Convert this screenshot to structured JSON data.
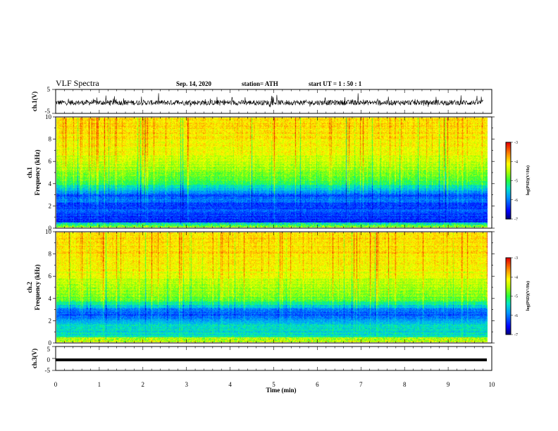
{
  "header": {
    "title": "VLF Spectra",
    "date": "Sep. 14, 2020",
    "station": "station= ATH",
    "start": "start  UT =   1 : 50 : 1"
  },
  "colors": {
    "spectrogram_colormap": [
      "#000080",
      "#0000ff",
      "#00a0ff",
      "#00ffa0",
      "#60ff00",
      "#ffff00",
      "#ff8000",
      "#ff0000",
      "#ffffff"
    ],
    "waveform": "#000000"
  },
  "chart_data": [
    {
      "type": "line",
      "panel": "ch.1 waveform",
      "ylabel": "ch.1(V)",
      "ylim": [
        -5,
        5
      ],
      "yticks": [
        "5",
        "-5"
      ],
      "xlim": [
        0,
        10
      ],
      "description_values": {
        "mean": -0.5,
        "amplitude_range": [
          -2,
          2
        ]
      },
      "grid": false
    },
    {
      "type": "heatmap",
      "panel": "ch.1 spectrogram",
      "ylabel": "ch.1\nFrequency  (kHz)",
      "ylim": [
        0,
        10
      ],
      "yticks": [
        "0",
        "2",
        "4",
        "6",
        "8",
        "10"
      ],
      "xlim": [
        0,
        9.8
      ],
      "colorbar": {
        "label": "log(PSD)(V²/Hz)",
        "range": [
          -7,
          -3
        ],
        "ticks": [
          "-3",
          "-4",
          "-5",
          "-6",
          "-7"
        ]
      },
      "psd_profile_khz": [
        [
          0,
          -5.5
        ],
        [
          0.5,
          -6.5
        ],
        [
          1,
          -6.3
        ],
        [
          1.5,
          -6.2
        ],
        [
          2,
          -6.4
        ],
        [
          2.5,
          -6.0
        ],
        [
          3,
          -6.2
        ],
        [
          3.5,
          -5.6
        ],
        [
          4,
          -5.1
        ],
        [
          5,
          -4.7
        ],
        [
          6,
          -4.4
        ],
        [
          7,
          -4.2
        ],
        [
          8,
          -4.1
        ],
        [
          9,
          -4.0
        ],
        [
          10,
          -4.0
        ]
      ]
    },
    {
      "type": "heatmap",
      "panel": "ch.2 spectrogram",
      "ylabel": "ch.2\nFrequency  (kHz)",
      "ylim": [
        0,
        10
      ],
      "yticks": [
        "0",
        "2",
        "4",
        "6",
        "8",
        "10"
      ],
      "xlim": [
        0,
        9.8
      ],
      "colorbar": {
        "label": "log(PSD)(V²/Hz)",
        "range": [
          -7,
          -3
        ],
        "ticks": [
          "-3",
          "-4",
          "-5",
          "-6",
          "-7"
        ]
      },
      "psd_profile_khz": [
        [
          0,
          -5.2
        ],
        [
          0.5,
          -5.3
        ],
        [
          1,
          -5.5
        ],
        [
          1.5,
          -5.4
        ],
        [
          2,
          -5.8
        ],
        [
          2.5,
          -6.3
        ],
        [
          3,
          -5.9
        ],
        [
          3.5,
          -5.2
        ],
        [
          4,
          -4.8
        ],
        [
          5,
          -4.5
        ],
        [
          6,
          -4.3
        ],
        [
          7,
          -4.1
        ],
        [
          8,
          -4.0
        ],
        [
          9,
          -4.0
        ],
        [
          10,
          -4.0
        ]
      ]
    },
    {
      "type": "line",
      "panel": "ch.3 waveform",
      "ylabel": "ch.3(V)",
      "ylim": [
        -5,
        5
      ],
      "yticks": [
        "5",
        "0",
        "-5"
      ],
      "xlim": [
        0,
        10
      ],
      "description_values": {
        "mean": 0,
        "amplitude_range": [
          -0.3,
          0.3
        ]
      },
      "grid": false
    }
  ],
  "xaxis": {
    "label": "Time  (min)",
    "ticks": [
      "0",
      "1",
      "2",
      "3",
      "4",
      "5",
      "6",
      "7",
      "8",
      "9",
      "10"
    ]
  }
}
